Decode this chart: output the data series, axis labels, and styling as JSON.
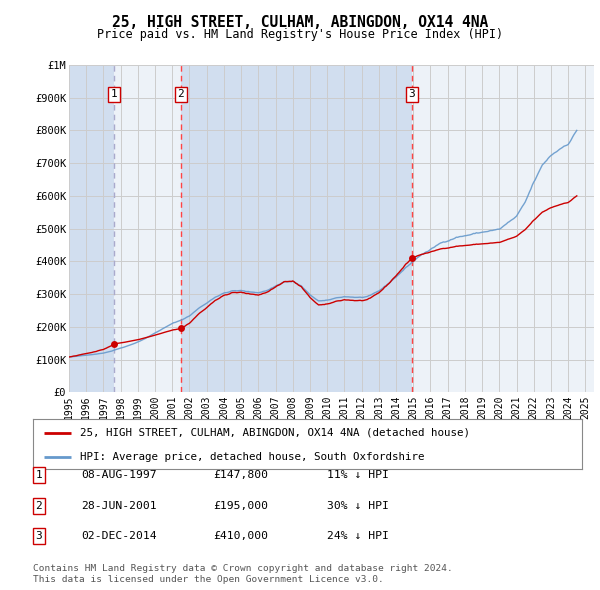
{
  "title": "25, HIGH STREET, CULHAM, ABINGDON, OX14 4NA",
  "subtitle": "Price paid vs. HM Land Registry's House Price Index (HPI)",
  "hpi_label": "HPI: Average price, detached house, South Oxfordshire",
  "price_label": "25, HIGH STREET, CULHAM, ABINGDON, OX14 4NA (detached house)",
  "footer1": "Contains HM Land Registry data © Crown copyright and database right 2024.",
  "footer2": "This data is licensed under the Open Government Licence v3.0.",
  "transactions": [
    {
      "num": 1,
      "date": "08-AUG-1997",
      "price": 147800,
      "pct": "11%",
      "dir": "↓",
      "year": 1997.608
    },
    {
      "num": 2,
      "date": "28-JUN-2001",
      "price": 195000,
      "pct": "30%",
      "dir": "↓",
      "year": 2001.495
    },
    {
      "num": 3,
      "date": "02-DEC-2014",
      "price": 410000,
      "pct": "24%",
      "dir": "↓",
      "year": 2014.918
    }
  ],
  "ylim": [
    0,
    1000000
  ],
  "xlim_start": 1995.0,
  "xlim_end": 2025.5,
  "yticks": [
    0,
    100000,
    200000,
    300000,
    400000,
    500000,
    600000,
    700000,
    800000,
    900000,
    1000000
  ],
  "ytick_labels": [
    "£0",
    "£100K",
    "£200K",
    "£300K",
    "£400K",
    "£500K",
    "£600K",
    "£700K",
    "£800K",
    "£900K",
    "£1M"
  ],
  "xticks": [
    1995,
    1996,
    1997,
    1998,
    1999,
    2000,
    2001,
    2002,
    2003,
    2004,
    2005,
    2006,
    2007,
    2008,
    2009,
    2010,
    2011,
    2012,
    2013,
    2014,
    2015,
    2016,
    2017,
    2018,
    2019,
    2020,
    2021,
    2022,
    2023,
    2024,
    2025
  ],
  "price_color": "#cc0000",
  "hpi_color": "#6699cc",
  "grid_color": "#cccccc",
  "bg_color": "#dce6f1",
  "plot_bg": "#ffffff",
  "vline1_color": "#aaaacc",
  "vline_color": "#ff4444",
  "label_box_color": "#cc0000",
  "shade_color": "#c8d8ee"
}
